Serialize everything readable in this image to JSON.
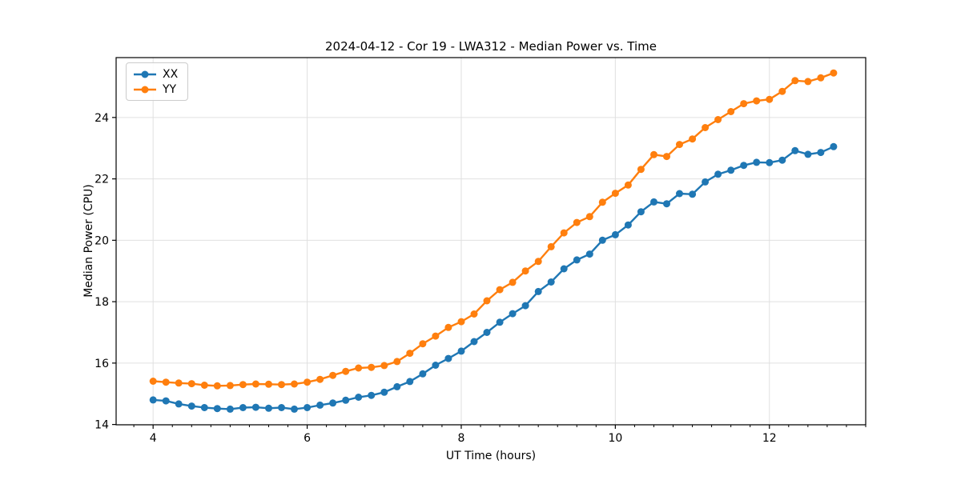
{
  "chart_data": {
    "type": "line",
    "title": "2024-04-12 - Cor 19 - LWA312 - Median Power vs. Time",
    "xlabel": "UT Time (hours)",
    "ylabel": "Median Power (CPU)",
    "legend_position": "upper left",
    "grid": true,
    "xlim": [
      3.52,
      13.25
    ],
    "ylim": [
      13.99,
      25.95
    ],
    "xticks": [
      4,
      6,
      8,
      10,
      12
    ],
    "x_minor_step": 0.25,
    "yticks": [
      14,
      16,
      18,
      20,
      22,
      24
    ],
    "x": [
      4.0,
      4.167,
      4.333,
      4.5,
      4.667,
      4.833,
      5.0,
      5.167,
      5.333,
      5.5,
      5.667,
      5.833,
      6.0,
      6.167,
      6.333,
      6.5,
      6.667,
      6.833,
      7.0,
      7.167,
      7.333,
      7.5,
      7.667,
      7.833,
      8.0,
      8.167,
      8.333,
      8.5,
      8.667,
      8.833,
      9.0,
      9.167,
      9.333,
      9.5,
      9.667,
      9.833,
      10.0,
      10.167,
      10.333,
      10.5,
      10.667,
      10.833,
      11.0,
      11.167,
      11.333,
      11.5,
      11.667,
      11.833,
      12.0,
      12.167,
      12.333,
      12.5,
      12.667,
      12.833
    ],
    "series": [
      {
        "name": "XX",
        "color": "#1f77b4",
        "values": [
          14.8,
          14.77,
          14.67,
          14.6,
          14.55,
          14.52,
          14.5,
          14.55,
          14.56,
          14.53,
          14.55,
          14.5,
          14.55,
          14.63,
          14.7,
          14.79,
          14.89,
          14.95,
          15.05,
          15.23,
          15.4,
          15.65,
          15.93,
          16.15,
          16.39,
          16.7,
          17.0,
          17.33,
          17.61,
          17.87,
          18.33,
          18.64,
          19.07,
          19.36,
          19.55,
          20.0,
          20.18,
          20.5,
          20.93,
          21.25,
          21.19,
          21.52,
          21.5,
          21.9,
          22.15,
          22.28,
          22.44,
          22.54,
          22.53,
          22.61,
          22.92,
          22.8,
          22.86,
          23.05
        ]
      },
      {
        "name": "YY",
        "color": "#ff7f0e",
        "values": [
          15.41,
          15.38,
          15.35,
          15.33,
          15.28,
          15.26,
          15.27,
          15.3,
          15.32,
          15.31,
          15.3,
          15.32,
          15.38,
          15.47,
          15.6,
          15.73,
          15.84,
          15.86,
          15.92,
          16.05,
          16.32,
          16.63,
          16.88,
          17.16,
          17.35,
          17.6,
          18.03,
          18.39,
          18.63,
          19.0,
          19.31,
          19.79,
          20.24,
          20.58,
          20.77,
          21.24,
          21.53,
          21.8,
          22.31,
          22.79,
          22.73,
          23.12,
          23.3,
          23.67,
          23.93,
          24.19,
          24.45,
          24.54,
          24.59,
          24.85,
          25.2,
          25.17,
          25.29,
          25.45
        ]
      }
    ],
    "colors": {
      "grid": "#e0e0e0",
      "spine": "#000000",
      "background": "#ffffff"
    }
  },
  "legend": {
    "items": [
      {
        "label": "XX"
      },
      {
        "label": "YY"
      }
    ]
  }
}
